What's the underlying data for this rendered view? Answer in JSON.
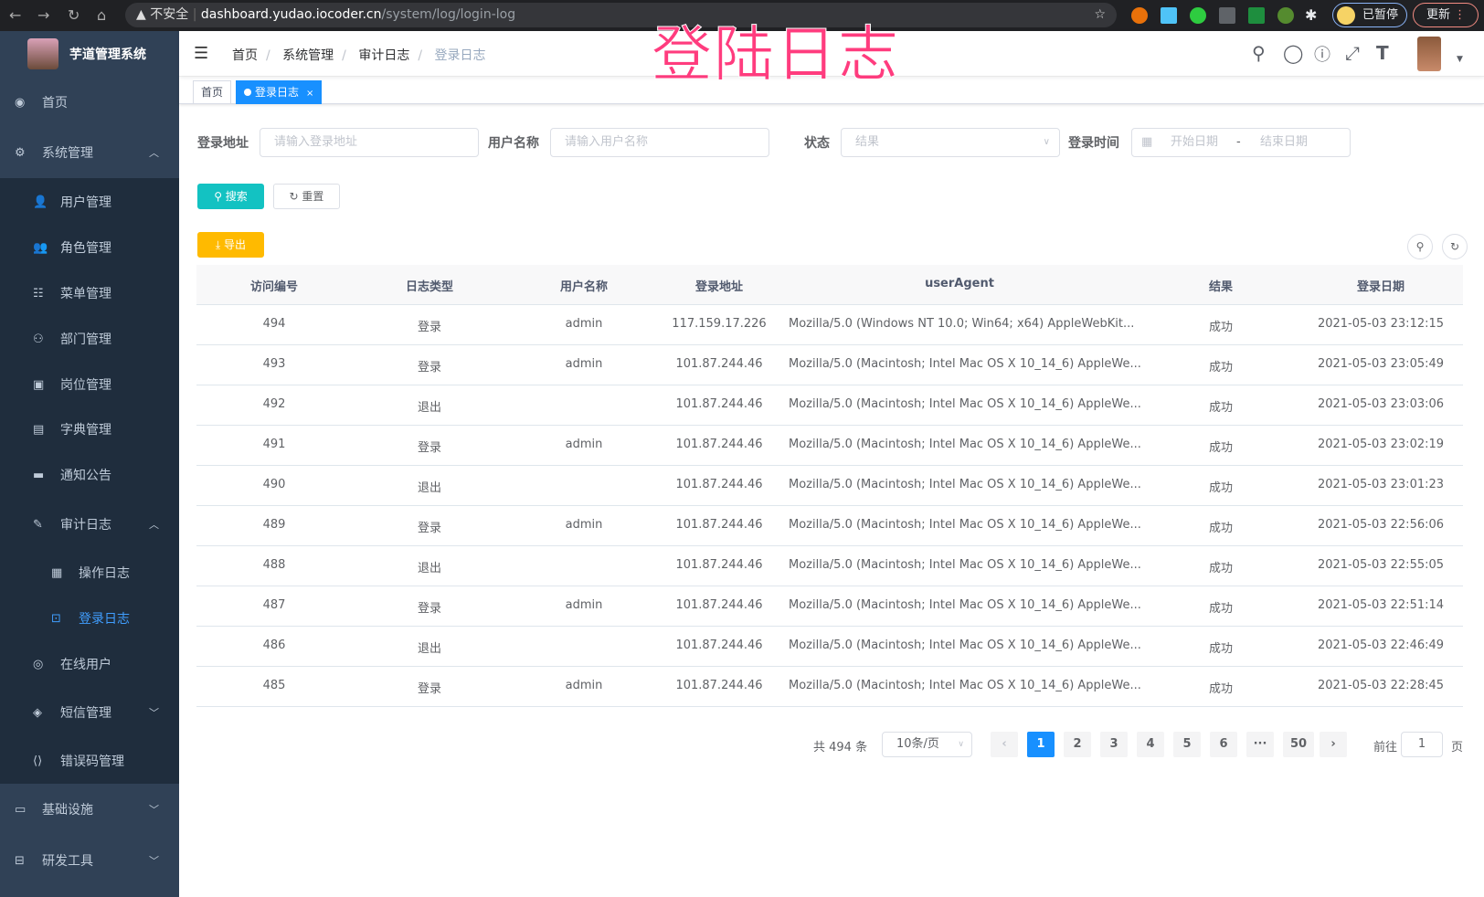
{
  "browser": {
    "security": "不安全",
    "host": "dashboard.yudao.iocoder.cn",
    "path": "/system/log/login-log",
    "profile": "已暂停",
    "update": "更新"
  },
  "overlay_title": "登陆日志",
  "sidebar": {
    "brand": "芋道管理系统",
    "items": [
      {
        "label": "首页",
        "icon": "dashboard-icon",
        "level": 0
      },
      {
        "label": "系统管理",
        "icon": "gear-icon",
        "level": 0,
        "chevron": "up"
      },
      {
        "label": "用户管理",
        "icon": "user-icon",
        "level": 1
      },
      {
        "label": "角色管理",
        "icon": "peoples-icon",
        "level": 1
      },
      {
        "label": "菜单管理",
        "icon": "tree-table-icon",
        "level": 1
      },
      {
        "label": "部门管理",
        "icon": "tree-icon",
        "level": 1
      },
      {
        "label": "岗位管理",
        "icon": "post-icon",
        "level": 1
      },
      {
        "label": "字典管理",
        "icon": "dict-icon",
        "level": 1
      },
      {
        "label": "通知公告",
        "icon": "message-icon",
        "level": 1
      },
      {
        "label": "审计日志",
        "icon": "log-icon",
        "level": 1,
        "chevron": "up"
      },
      {
        "label": "操作日志",
        "icon": "form-icon",
        "level": 2
      },
      {
        "label": "登录日志",
        "icon": "logininfor-icon",
        "level": 2,
        "active": true
      },
      {
        "label": "在线用户",
        "icon": "online-icon",
        "level": 1
      },
      {
        "label": "短信管理",
        "icon": "validCode-icon",
        "level": 1,
        "chevron": "down"
      },
      {
        "label": "错误码管理",
        "icon": "code-icon",
        "level": 1
      },
      {
        "label": "基础设施",
        "icon": "monitor-icon",
        "level": 0,
        "chevron": "down"
      },
      {
        "label": "研发工具",
        "icon": "tool-icon",
        "level": 0,
        "chevron": "down"
      }
    ]
  },
  "breadcrumb": [
    "首页",
    "系统管理",
    "审计日志",
    "登录日志"
  ],
  "tags": {
    "home": "首页",
    "active": "登录日志"
  },
  "filters": {
    "ip_label": "登录地址",
    "ip_placeholder": "请输入登录地址",
    "user_label": "用户名称",
    "user_placeholder": "请输入用户名称",
    "status_label": "状态",
    "status_placeholder": "结果",
    "time_label": "登录时间",
    "start_placeholder": "开始日期",
    "range_sep": "-",
    "end_placeholder": "结束日期"
  },
  "buttons": {
    "search": "搜索",
    "reset": "重置",
    "export": "导出"
  },
  "table": {
    "columns": [
      "访问编号",
      "日志类型",
      "用户名称",
      "登录地址",
      "userAgent",
      "结果",
      "登录日期"
    ],
    "rows": [
      [
        "494",
        "登录",
        "admin",
        "117.159.17.226",
        "Mozilla/5.0 (Windows NT 10.0; Win64; x64) AppleWebKit...",
        "成功",
        "2021-05-03 23:12:15"
      ],
      [
        "493",
        "登录",
        "admin",
        "101.87.244.46",
        "Mozilla/5.0 (Macintosh; Intel Mac OS X 10_14_6) AppleWe...",
        "成功",
        "2021-05-03 23:05:49"
      ],
      [
        "492",
        "退出",
        "",
        "101.87.244.46",
        "Mozilla/5.0 (Macintosh; Intel Mac OS X 10_14_6) AppleWe...",
        "成功",
        "2021-05-03 23:03:06"
      ],
      [
        "491",
        "登录",
        "admin",
        "101.87.244.46",
        "Mozilla/5.0 (Macintosh; Intel Mac OS X 10_14_6) AppleWe...",
        "成功",
        "2021-05-03 23:02:19"
      ],
      [
        "490",
        "退出",
        "",
        "101.87.244.46",
        "Mozilla/5.0 (Macintosh; Intel Mac OS X 10_14_6) AppleWe...",
        "成功",
        "2021-05-03 23:01:23"
      ],
      [
        "489",
        "登录",
        "admin",
        "101.87.244.46",
        "Mozilla/5.0 (Macintosh; Intel Mac OS X 10_14_6) AppleWe...",
        "成功",
        "2021-05-03 22:56:06"
      ],
      [
        "488",
        "退出",
        "",
        "101.87.244.46",
        "Mozilla/5.0 (Macintosh; Intel Mac OS X 10_14_6) AppleWe...",
        "成功",
        "2021-05-03 22:55:05"
      ],
      [
        "487",
        "登录",
        "admin",
        "101.87.244.46",
        "Mozilla/5.0 (Macintosh; Intel Mac OS X 10_14_6) AppleWe...",
        "成功",
        "2021-05-03 22:51:14"
      ],
      [
        "486",
        "退出",
        "",
        "101.87.244.46",
        "Mozilla/5.0 (Macintosh; Intel Mac OS X 10_14_6) AppleWe...",
        "成功",
        "2021-05-03 22:46:49"
      ],
      [
        "485",
        "登录",
        "admin",
        "101.87.244.46",
        "Mozilla/5.0 (Macintosh; Intel Mac OS X 10_14_6) AppleWe...",
        "成功",
        "2021-05-03 22:28:45"
      ]
    ]
  },
  "pagination": {
    "total": "共 494 条",
    "page_size": "10条/页",
    "pages": [
      "1",
      "2",
      "3",
      "4",
      "5",
      "6",
      "···",
      "50"
    ],
    "current": "1",
    "goto_label": "前往",
    "goto_value": "1",
    "goto_suffix": "页"
  },
  "colors": {
    "sidebar": "#304156",
    "submenu": "#1f2d3d",
    "primary": "#1890ff",
    "search": "#13c2c2",
    "export": "#ffba00",
    "overlay": "#ff3c7e"
  }
}
